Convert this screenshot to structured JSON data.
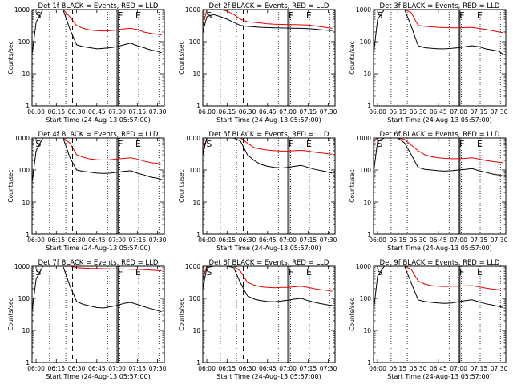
{
  "figure": {
    "xlabel": "Start Time (24-Aug-13 05:57:00)",
    "ylabel": "Counts/sec",
    "xticks": [
      "06:00",
      "06:15",
      "06:30",
      "06:45",
      "07:00",
      "07:15",
      "07:30"
    ],
    "yticks": [
      "1",
      "10",
      "100",
      "1000"
    ],
    "colors": {
      "events": "#000000",
      "lld": "#e00000"
    }
  },
  "chart_data": [
    {
      "type": "line",
      "title": "Det 1f BLACK = Events, RED = LLD",
      "xlim": [
        "05:57",
        "07:35"
      ],
      "ylim": [
        1,
        1000
      ],
      "yscale": "log",
      "grid": false,
      "markers": [
        "S",
        "F",
        "E"
      ],
      "series": [
        {
          "color": "#e00000",
          "x": [
            "05:57",
            "06:00",
            "06:05",
            "06:10",
            "06:15",
            "06:20",
            "06:25",
            "06:30",
            "06:35",
            "06:40",
            "06:45",
            "06:50",
            "06:55",
            "07:00",
            "07:05",
            "07:10",
            "07:15",
            "07:20",
            "07:25",
            "07:30",
            "07:33"
          ],
          "values": [
            1000,
            1000,
            1000,
            1000,
            1000,
            1000,
            600,
            320,
            260,
            230,
            220,
            215,
            220,
            230,
            250,
            260,
            240,
            200,
            180,
            170,
            160
          ]
        },
        {
          "color": "#000000",
          "x": [
            "05:57",
            "06:00",
            "06:05",
            "06:10",
            "06:15",
            "06:20",
            "06:25",
            "06:30",
            "06:35",
            "06:40",
            "06:45",
            "06:50",
            "06:55",
            "07:00",
            "07:05",
            "07:10",
            "07:15",
            "07:20",
            "07:25",
            "07:30",
            "07:33"
          ],
          "values": [
            40,
            400,
            1000,
            1000,
            1000,
            1000,
            250,
            80,
            70,
            65,
            60,
            62,
            65,
            70,
            80,
            90,
            75,
            65,
            55,
            50,
            45
          ]
        }
      ]
    },
    {
      "type": "line",
      "title": "Det 2f BLACK = Events, RED = LLD",
      "xlim": [
        "05:57",
        "07:35"
      ],
      "ylim": [
        1,
        1000
      ],
      "yscale": "log",
      "grid": false,
      "markers": [
        "S",
        "F",
        "E"
      ],
      "series": [
        {
          "color": "#e00000",
          "x": [
            "05:57",
            "06:00",
            "06:05",
            "06:10",
            "06:15",
            "06:20",
            "06:25",
            "06:30",
            "06:35",
            "06:40",
            "06:45",
            "06:50",
            "06:55",
            "07:00",
            "07:05",
            "07:10",
            "07:15",
            "07:20",
            "07:25",
            "07:30",
            "07:33"
          ],
          "values": [
            300,
            1000,
            1000,
            1000,
            900,
            700,
            500,
            420,
            400,
            380,
            360,
            350,
            345,
            340,
            340,
            335,
            330,
            310,
            290,
            270,
            260
          ]
        },
        {
          "color": "#000000",
          "x": [
            "05:57",
            "06:00",
            "06:05",
            "06:10",
            "06:15",
            "06:20",
            "06:25",
            "06:30",
            "06:35",
            "06:40",
            "06:45",
            "06:50",
            "06:55",
            "07:00",
            "07:05",
            "07:10",
            "07:15",
            "07:20",
            "07:25",
            "07:30",
            "07:33"
          ],
          "values": [
            200,
            600,
            700,
            600,
            500,
            400,
            320,
            300,
            290,
            280,
            275,
            270,
            268,
            265,
            262,
            260,
            255,
            245,
            235,
            225,
            220
          ]
        }
      ]
    },
    {
      "type": "line",
      "title": "Det 3f BLACK = Events, RED = LLD",
      "xlim": [
        "05:57",
        "07:35"
      ],
      "ylim": [
        1,
        1000
      ],
      "yscale": "log",
      "grid": false,
      "markers": [
        "S",
        "F",
        "E"
      ],
      "series": [
        {
          "color": "#e00000",
          "x": [
            "05:57",
            "06:00",
            "06:05",
            "06:10",
            "06:15",
            "06:20",
            "06:25",
            "06:30",
            "06:35",
            "06:40",
            "06:45",
            "06:50",
            "06:55",
            "07:00",
            "07:05",
            "07:10",
            "07:15",
            "07:20",
            "07:25",
            "07:30",
            "07:33"
          ],
          "values": [
            1000,
            1000,
            1000,
            1000,
            1000,
            1000,
            800,
            320,
            300,
            290,
            280,
            275,
            270,
            270,
            275,
            280,
            260,
            240,
            220,
            200,
            190
          ]
        },
        {
          "color": "#000000",
          "x": [
            "05:57",
            "06:00",
            "06:05",
            "06:10",
            "06:15",
            "06:20",
            "06:25",
            "06:30",
            "06:35",
            "06:40",
            "06:45",
            "06:50",
            "06:55",
            "07:00",
            "07:05",
            "07:10",
            "07:15",
            "07:20",
            "07:25",
            "07:30",
            "07:33"
          ],
          "values": [
            40,
            500,
            1000,
            1000,
            1000,
            1000,
            300,
            75,
            65,
            62,
            60,
            60,
            62,
            65,
            70,
            75,
            70,
            60,
            55,
            50,
            40
          ]
        }
      ]
    },
    {
      "type": "line",
      "title": "Det 4f BLACK = Events, RED = LLD",
      "xlim": [
        "05:57",
        "07:35"
      ],
      "ylim": [
        1,
        1000
      ],
      "yscale": "log",
      "grid": false,
      "markers": [
        "S",
        "F",
        "E"
      ],
      "series": [
        {
          "color": "#e00000",
          "x": [
            "05:57",
            "06:00",
            "06:05",
            "06:10",
            "06:15",
            "06:20",
            "06:25",
            "06:30",
            "06:35",
            "06:40",
            "06:45",
            "06:50",
            "06:55",
            "07:00",
            "07:05",
            "07:10",
            "07:15",
            "07:20",
            "07:25",
            "07:30",
            "07:33"
          ],
          "values": [
            1000,
            1000,
            1000,
            1000,
            1000,
            1000,
            700,
            300,
            250,
            220,
            210,
            205,
            210,
            220,
            230,
            240,
            220,
            190,
            170,
            160,
            150
          ]
        },
        {
          "color": "#000000",
          "x": [
            "05:57",
            "06:00",
            "06:05",
            "06:10",
            "06:15",
            "06:20",
            "06:25",
            "06:30",
            "06:35",
            "06:40",
            "06:45",
            "06:50",
            "06:55",
            "07:00",
            "07:05",
            "07:10",
            "07:15",
            "07:20",
            "07:25",
            "07:30",
            "07:33"
          ],
          "values": [
            40,
            400,
            1000,
            1000,
            1000,
            1000,
            250,
            100,
            90,
            85,
            80,
            78,
            80,
            85,
            90,
            95,
            80,
            70,
            60,
            55,
            50
          ]
        }
      ]
    },
    {
      "type": "line",
      "title": "Det 5f BLACK = Events, RED = LLD",
      "xlim": [
        "05:57",
        "07:35"
      ],
      "ylim": [
        1,
        1000
      ],
      "yscale": "log",
      "grid": false,
      "markers": [
        "S",
        "F",
        "E"
      ],
      "series": [
        {
          "color": "#e00000",
          "x": [
            "05:57",
            "06:00",
            "06:05",
            "06:10",
            "06:15",
            "06:20",
            "06:25",
            "06:30",
            "06:35",
            "06:40",
            "06:45",
            "06:50",
            "06:55",
            "07:00",
            "07:05",
            "07:10",
            "07:15",
            "07:20",
            "07:25",
            "07:30",
            "07:33"
          ],
          "values": [
            400,
            1000,
            1000,
            1000,
            1000,
            1000,
            1000,
            700,
            500,
            450,
            420,
            400,
            390,
            390,
            400,
            410,
            390,
            360,
            340,
            320,
            310
          ]
        },
        {
          "color": "#000000",
          "x": [
            "05:57",
            "06:00",
            "06:05",
            "06:10",
            "06:15",
            "06:20",
            "06:25",
            "06:30",
            "06:35",
            "06:40",
            "06:45",
            "06:50",
            "06:55",
            "07:00",
            "07:05",
            "07:10",
            "07:15",
            "07:20",
            "07:25",
            "07:30",
            "07:33"
          ],
          "values": [
            300,
            1000,
            1000,
            1000,
            1000,
            1000,
            800,
            300,
            200,
            150,
            130,
            120,
            115,
            120,
            130,
            140,
            120,
            105,
            95,
            85,
            80
          ]
        }
      ]
    },
    {
      "type": "line",
      "title": "Det 6f BLACK = Events, RED = LLD",
      "xlim": [
        "05:57",
        "07:35"
      ],
      "ylim": [
        1,
        1000
      ],
      "yscale": "log",
      "grid": false,
      "markers": [
        "S",
        "F",
        "E"
      ],
      "series": [
        {
          "color": "#e00000",
          "x": [
            "05:57",
            "06:00",
            "06:05",
            "06:10",
            "06:15",
            "06:20",
            "06:25",
            "06:30",
            "06:35",
            "06:40",
            "06:45",
            "06:50",
            "06:55",
            "07:00",
            "07:05",
            "07:10",
            "07:15",
            "07:20",
            "07:25",
            "07:30",
            "07:33"
          ],
          "values": [
            800,
            1000,
            1000,
            1000,
            1000,
            900,
            600,
            400,
            300,
            260,
            240,
            230,
            225,
            225,
            230,
            240,
            220,
            200,
            185,
            175,
            170
          ]
        },
        {
          "color": "#000000",
          "x": [
            "05:57",
            "06:00",
            "06:05",
            "06:10",
            "06:15",
            "06:20",
            "06:25",
            "06:30",
            "06:35",
            "06:40",
            "06:45",
            "06:50",
            "06:55",
            "07:00",
            "07:05",
            "07:10",
            "07:15",
            "07:20",
            "07:25",
            "07:30",
            "07:33"
          ],
          "values": [
            80,
            800,
            1000,
            1000,
            1000,
            700,
            300,
            120,
            105,
            100,
            95,
            92,
            95,
            100,
            105,
            110,
            95,
            85,
            75,
            70,
            65
          ]
        }
      ]
    },
    {
      "type": "line",
      "title": "Det 7f BLACK = Events, RED = LLD",
      "xlim": [
        "05:57",
        "07:35"
      ],
      "ylim": [
        1,
        1000
      ],
      "yscale": "log",
      "grid": false,
      "markers": [
        "S",
        "F",
        "E"
      ],
      "series": [
        {
          "color": "#e00000",
          "x": [
            "05:57",
            "06:00",
            "06:05",
            "06:10",
            "06:15",
            "06:20",
            "06:25",
            "06:30",
            "06:35",
            "06:40",
            "06:45",
            "06:50",
            "06:55",
            "07:00",
            "07:05",
            "07:10",
            "07:15",
            "07:20",
            "07:25",
            "07:30",
            "07:33"
          ],
          "values": [
            1000,
            1000,
            1000,
            1000,
            1000,
            1000,
            1000,
            900,
            880,
            860,
            850,
            840,
            830,
            830,
            820,
            810,
            800,
            780,
            760,
            740,
            730
          ]
        },
        {
          "color": "#000000",
          "x": [
            "05:57",
            "06:00",
            "06:05",
            "06:10",
            "06:15",
            "06:20",
            "06:25",
            "06:30",
            "06:35",
            "06:40",
            "06:45",
            "06:50",
            "06:55",
            "07:00",
            "07:05",
            "07:10",
            "07:15",
            "07:20",
            "07:25",
            "07:30",
            "07:33"
          ],
          "values": [
            40,
            400,
            1000,
            1000,
            1000,
            1000,
            250,
            80,
            65,
            58,
            52,
            50,
            55,
            60,
            70,
            75,
            65,
            55,
            48,
            42,
            38
          ]
        }
      ]
    },
    {
      "type": "line",
      "title": "Det 8f BLACK = Events, RED = LLD",
      "xlim": [
        "05:57",
        "07:35"
      ],
      "ylim": [
        1,
        1000
      ],
      "yscale": "log",
      "grid": false,
      "markers": [
        "S",
        "F",
        "E"
      ],
      "series": [
        {
          "color": "#e00000",
          "x": [
            "05:57",
            "06:00",
            "06:05",
            "06:10",
            "06:15",
            "06:20",
            "06:25",
            "06:30",
            "06:35",
            "06:40",
            "06:45",
            "06:50",
            "06:55",
            "07:00",
            "07:05",
            "07:10",
            "07:15",
            "07:20",
            "07:25",
            "07:30",
            "07:33"
          ],
          "values": [
            400,
            1000,
            1000,
            1000,
            1000,
            1000,
            700,
            320,
            260,
            230,
            220,
            215,
            220,
            220,
            230,
            240,
            220,
            200,
            185,
            175,
            165
          ]
        },
        {
          "color": "#000000",
          "x": [
            "05:57",
            "06:00",
            "06:05",
            "06:10",
            "06:15",
            "06:20",
            "06:25",
            "06:30",
            "06:35",
            "06:40",
            "06:45",
            "06:50",
            "06:55",
            "07:00",
            "07:05",
            "07:10",
            "07:15",
            "07:20",
            "07:25",
            "07:30",
            "07:33"
          ],
          "values": [
            200,
            900,
            1000,
            1000,
            1000,
            900,
            300,
            120,
            95,
            85,
            80,
            78,
            82,
            88,
            95,
            100,
            85,
            75,
            68,
            62,
            60
          ]
        }
      ]
    },
    {
      "type": "line",
      "title": "Det 9f BLACK = Events, RED = LLD",
      "xlim": [
        "05:57",
        "07:35"
      ],
      "ylim": [
        1,
        1000
      ],
      "yscale": "log",
      "grid": false,
      "markers": [
        "S",
        "F",
        "E"
      ],
      "series": [
        {
          "color": "#e00000",
          "x": [
            "05:57",
            "06:00",
            "06:05",
            "06:10",
            "06:15",
            "06:20",
            "06:25",
            "06:30",
            "06:35",
            "06:40",
            "06:45",
            "06:50",
            "06:55",
            "07:00",
            "07:05",
            "07:10",
            "07:15",
            "07:20",
            "07:25",
            "07:30",
            "07:33"
          ],
          "values": [
            1000,
            1000,
            1000,
            1000,
            1000,
            1000,
            800,
            350,
            280,
            250,
            240,
            235,
            240,
            240,
            245,
            250,
            230,
            210,
            195,
            185,
            180
          ]
        },
        {
          "color": "#000000",
          "x": [
            "05:57",
            "06:00",
            "06:05",
            "06:10",
            "06:15",
            "06:20",
            "06:25",
            "06:30",
            "06:35",
            "06:40",
            "06:45",
            "06:50",
            "06:55",
            "07:00",
            "07:05",
            "07:10",
            "07:15",
            "07:20",
            "07:25",
            "07:30",
            "07:33"
          ],
          "values": [
            40,
            500,
            1000,
            1000,
            1000,
            1000,
            300,
            90,
            80,
            75,
            72,
            70,
            72,
            78,
            85,
            90,
            78,
            68,
            62,
            56,
            52
          ]
        }
      ]
    }
  ]
}
